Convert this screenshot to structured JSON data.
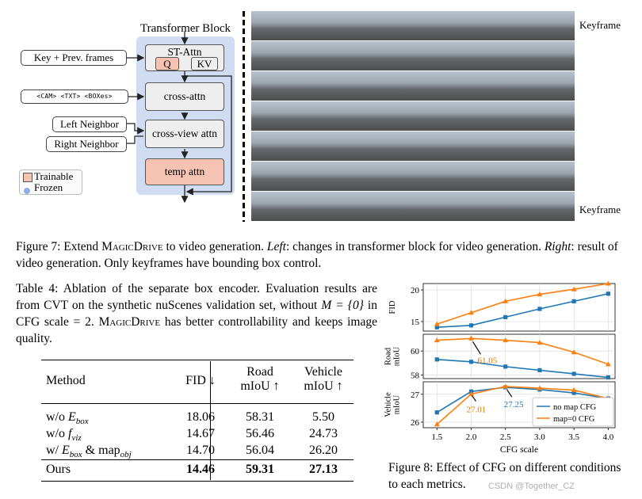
{
  "diagram": {
    "title": "Transformer Block",
    "st_attn": "ST-Attn",
    "q": "Q",
    "kv": "KV",
    "cross_attn": "cross-attn",
    "cross_view_attn": "cross-view attn",
    "temp_attn": "temp attn",
    "input_key_prev": "Key + Prev. frames",
    "input_tokens": "<CAM> <TXT> <BOXes>",
    "input_left": "Left Neighbor",
    "input_right": "Right Neighbor",
    "legend_trainable": "Trainable",
    "legend_frozen": "Frozen",
    "keyframe_top": "Keyframe",
    "keyframe_bottom": "Keyframe"
  },
  "figure7": {
    "label": "Figure 7:",
    "text1": " Extend ",
    "magicdrive": "MagicDrive",
    "text2": " to video generation. ",
    "left": "Left",
    "text3": ": changes in transformer block for video generation. ",
    "right": "Right",
    "text4": ": result of video generation. Only keyframes have bounding box control."
  },
  "table4": {
    "caption_a": "Table 4: Ablation of the separate box encoder. Evaluation results are from CVT on the synthetic nuScenes validation set, without ",
    "caption_math": "M = {0}",
    "caption_b": " in CFG scale = 2. ",
    "caption_magic": "MagicDrive",
    "caption_c": " has better controllability and keeps image quality.",
    "headers": {
      "method": "Method",
      "fid": "FID ↓",
      "road_1": "Road",
      "road_2": "mIoU ↑",
      "veh_1": "Vehicle",
      "veh_2": "mIoU ↑"
    },
    "rows": [
      {
        "method_pre": "w/o ",
        "method_sym": "E",
        "method_sub": "box",
        "method_post": "",
        "fid": "18.06",
        "road": "58.31",
        "vehicle": "5.50"
      },
      {
        "method_pre": "w/o ",
        "method_sym": "f",
        "method_sub": "viz",
        "method_post": "",
        "fid": "14.67",
        "road": "56.46",
        "vehicle": "24.73"
      },
      {
        "method_pre": "w/ ",
        "method_sym": "E",
        "method_sub": "box",
        "method_post": " & map",
        "method_sub2": "obj",
        "fid": "14.70",
        "road": "56.04",
        "vehicle": "26.20"
      }
    ],
    "ours": {
      "method": "Ours",
      "fid": "14.46",
      "road": "59.31",
      "vehicle": "27.13"
    }
  },
  "figure8": {
    "label": "Figure 8:",
    "text": " Effect of CFG on different conditions to each metrics.",
    "watermark": "CSDN @Together_CZ"
  },
  "chart_data": [
    {
      "type": "line",
      "ylabel": "FID",
      "x": [
        1.5,
        2.0,
        2.5,
        3.0,
        3.5,
        4.0
      ],
      "yticks": [
        15,
        20
      ],
      "ylim": [
        13.5,
        21
      ],
      "series": [
        {
          "name": "no map CFG",
          "color": "#1f77b4",
          "values": [
            14.1,
            14.4,
            15.7,
            17.0,
            18.2,
            19.4
          ]
        },
        {
          "name": "map=0 CFG",
          "color": "#ff7f0e",
          "values": [
            14.6,
            16.4,
            18.2,
            19.3,
            20.1,
            21.0
          ]
        }
      ]
    },
    {
      "type": "line",
      "ylabel": "Road mIoU",
      "x": [
        1.5,
        2.0,
        2.5,
        3.0,
        3.5,
        4.0
      ],
      "yticks": [
        58,
        60
      ],
      "ylim": [
        57.7,
        61.4
      ],
      "annotation": "61.05",
      "series": [
        {
          "name": "no map CFG",
          "color": "#1f77b4",
          "values": [
            59.3,
            59.1,
            58.7,
            58.4,
            58.1,
            57.8
          ]
        },
        {
          "name": "map=0 CFG",
          "color": "#ff7f0e",
          "values": [
            60.9,
            61.05,
            60.9,
            60.7,
            59.9,
            58.9
          ]
        }
      ]
    },
    {
      "type": "line",
      "ylabel": "Vehicle mIoU",
      "xlabel": "CFG scale",
      "x": [
        1.5,
        2.0,
        2.5,
        3.0,
        3.5,
        4.0
      ],
      "xticks": [
        "1.5",
        "2.0",
        "2.5",
        "3.0",
        "3.5",
        "4.0"
      ],
      "yticks": [
        26,
        27
      ],
      "ylim": [
        25.8,
        27.45
      ],
      "annotations": [
        "27.01",
        "27.25"
      ],
      "legend": "bottom-right",
      "series": [
        {
          "name": "no map CFG",
          "color": "#1f77b4",
          "values": [
            26.35,
            27.1,
            27.25,
            27.17,
            27.05,
            26.85
          ]
        },
        {
          "name": "map=0 CFG",
          "color": "#ff7f0e",
          "values": [
            25.92,
            27.01,
            27.28,
            27.22,
            27.15,
            26.85
          ]
        }
      ]
    }
  ]
}
